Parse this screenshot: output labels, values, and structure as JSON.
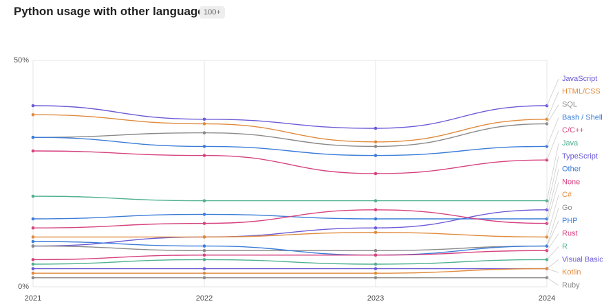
{
  "chart_data": {
    "type": "line",
    "title": "Python usage with other languages",
    "badge": "100+",
    "categories": [
      "2021",
      "2022",
      "2023",
      "2024"
    ],
    "ylim": [
      0,
      50
    ],
    "yticks": [
      {
        "value": 0,
        "label": "0%"
      },
      {
        "value": 50,
        "label": "50%"
      }
    ],
    "grid": true,
    "series": [
      {
        "name": "JavaScript",
        "color": "#6b5bd6",
        "values": [
          40,
          37,
          35,
          40
        ]
      },
      {
        "name": "HTML/CSS",
        "color": "#e08a3c",
        "values": [
          38,
          36,
          32,
          37
        ]
      },
      {
        "name": "SQL",
        "color": "#8a8a8a",
        "values": [
          33,
          34,
          31,
          36
        ]
      },
      {
        "name": "Bash / Shell",
        "color": "#3b7dd8",
        "values": [
          33,
          31,
          29,
          31
        ]
      },
      {
        "name": "C/C++",
        "color": "#d6427f",
        "values": [
          30,
          29,
          25,
          28
        ]
      },
      {
        "name": "Java",
        "color": "#4fb08f",
        "values": [
          20,
          19,
          19,
          19
        ]
      },
      {
        "name": "TypeScript",
        "color": "#6b5bd6",
        "values": [
          9,
          11,
          13,
          17
        ]
      },
      {
        "name": "Other",
        "color": "#3b7dd8",
        "values": [
          15,
          16,
          15,
          15
        ]
      },
      {
        "name": "None",
        "color": "#d6427f",
        "values": [
          13,
          14,
          17,
          14
        ]
      },
      {
        "name": "C#",
        "color": "#e08a3c",
        "values": [
          11,
          11,
          12,
          11
        ]
      },
      {
        "name": "Go",
        "color": "#8a8a8a",
        "values": [
          9,
          8,
          8,
          9
        ]
      },
      {
        "name": "PHP",
        "color": "#3b7dd8",
        "values": [
          10,
          9,
          7,
          9
        ]
      },
      {
        "name": "Rust",
        "color": "#d6427f",
        "values": [
          6,
          7,
          7,
          8
        ]
      },
      {
        "name": "R",
        "color": "#4fb08f",
        "values": [
          5,
          6,
          5,
          6
        ]
      },
      {
        "name": "Visual Basic",
        "color": "#6b5bd6",
        "values": [
          4,
          4,
          4,
          4
        ]
      },
      {
        "name": "Kotlin",
        "color": "#e08a3c",
        "values": [
          3,
          3,
          3,
          4
        ]
      },
      {
        "name": "Ruby",
        "color": "#8a8a8a",
        "values": [
          2,
          2,
          2,
          2
        ]
      }
    ]
  }
}
